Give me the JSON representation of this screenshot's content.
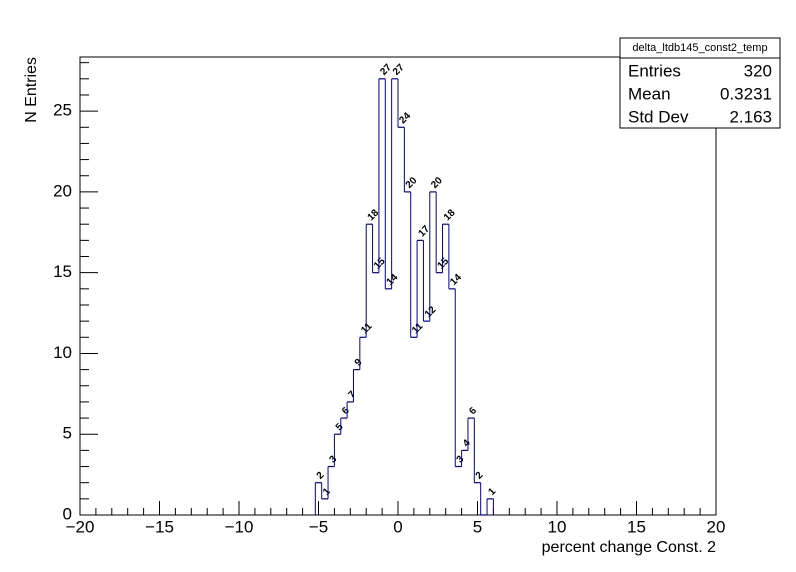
{
  "chart_data": {
    "type": "histogram",
    "xlabel": "percent change Const. 2",
    "ylabel": "N Entries",
    "bins": [
      -5.2,
      -4.8,
      -4.4,
      -4.0,
      -3.6,
      -3.2,
      -2.8,
      -2.4,
      -2.0,
      -1.6,
      -1.2,
      -0.8,
      -0.4,
      0.0,
      0.4,
      0.8,
      1.2,
      1.6,
      2.0,
      2.4,
      2.8,
      3.2,
      3.6,
      4.0,
      4.4,
      4.8,
      5.2,
      5.6,
      6.0
    ],
    "values": [
      2,
      1,
      3,
      5,
      6,
      7,
      9,
      11,
      18,
      15,
      27,
      14,
      27,
      24,
      20,
      11,
      17,
      12,
      20,
      15,
      18,
      14,
      3,
      4,
      6,
      2,
      0,
      1
    ],
    "color": "#000099",
    "xlim": [
      -20,
      20
    ],
    "xticks": [
      {
        "value": -20,
        "label": "−20"
      },
      {
        "value": -15,
        "label": "−15"
      },
      {
        "value": -10,
        "label": "−10"
      },
      {
        "value": -5,
        "label": "−5"
      },
      0,
      5,
      10,
      15,
      20
    ],
    "ylim": [
      0,
      28.35
    ],
    "yticks": [
      0,
      5,
      10,
      15,
      20,
      25
    ],
    "stats": {
      "title": "delta_ltdb145_const2_temp",
      "rows": [
        {
          "label": "Entries",
          "value": 320
        },
        {
          "label": "Mean",
          "value": 0.3231
        },
        {
          "label": "Std Dev",
          "value": 2.163
        }
      ]
    }
  }
}
